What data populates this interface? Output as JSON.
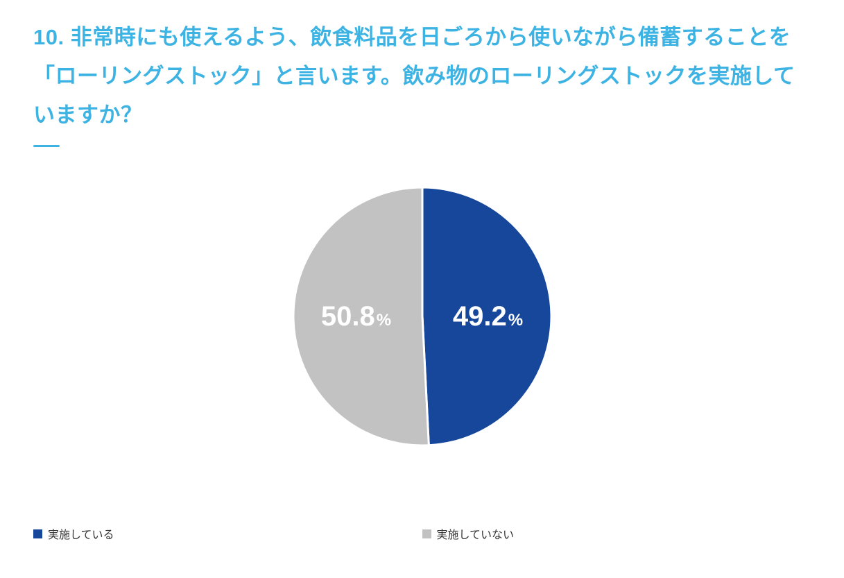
{
  "page": {
    "title": "10. 非常時にも使えるよう、飲食料品を日ごろから使いながら備蓄することを「ローリングストック」と言います。飲み物のローリングストックを実施していますか？",
    "title_color": "#3db3e3",
    "underline_color": "#3db3e3",
    "background_color": "#ffffff"
  },
  "chart_data": {
    "type": "pie",
    "title": "飲み物のローリングストックを実施していますか？",
    "start_angle": "top",
    "direction": "clockwise",
    "legend_position": "bottom",
    "label_text_color": "#ffffff",
    "slices": [
      {
        "label": "実施している",
        "value": 49.2,
        "display": "49.2",
        "unit": "%",
        "color": "#17479b"
      },
      {
        "label": "実施していない",
        "value": 50.8,
        "display": "50.8",
        "unit": "%",
        "color": "#c2c2c2"
      }
    ]
  }
}
